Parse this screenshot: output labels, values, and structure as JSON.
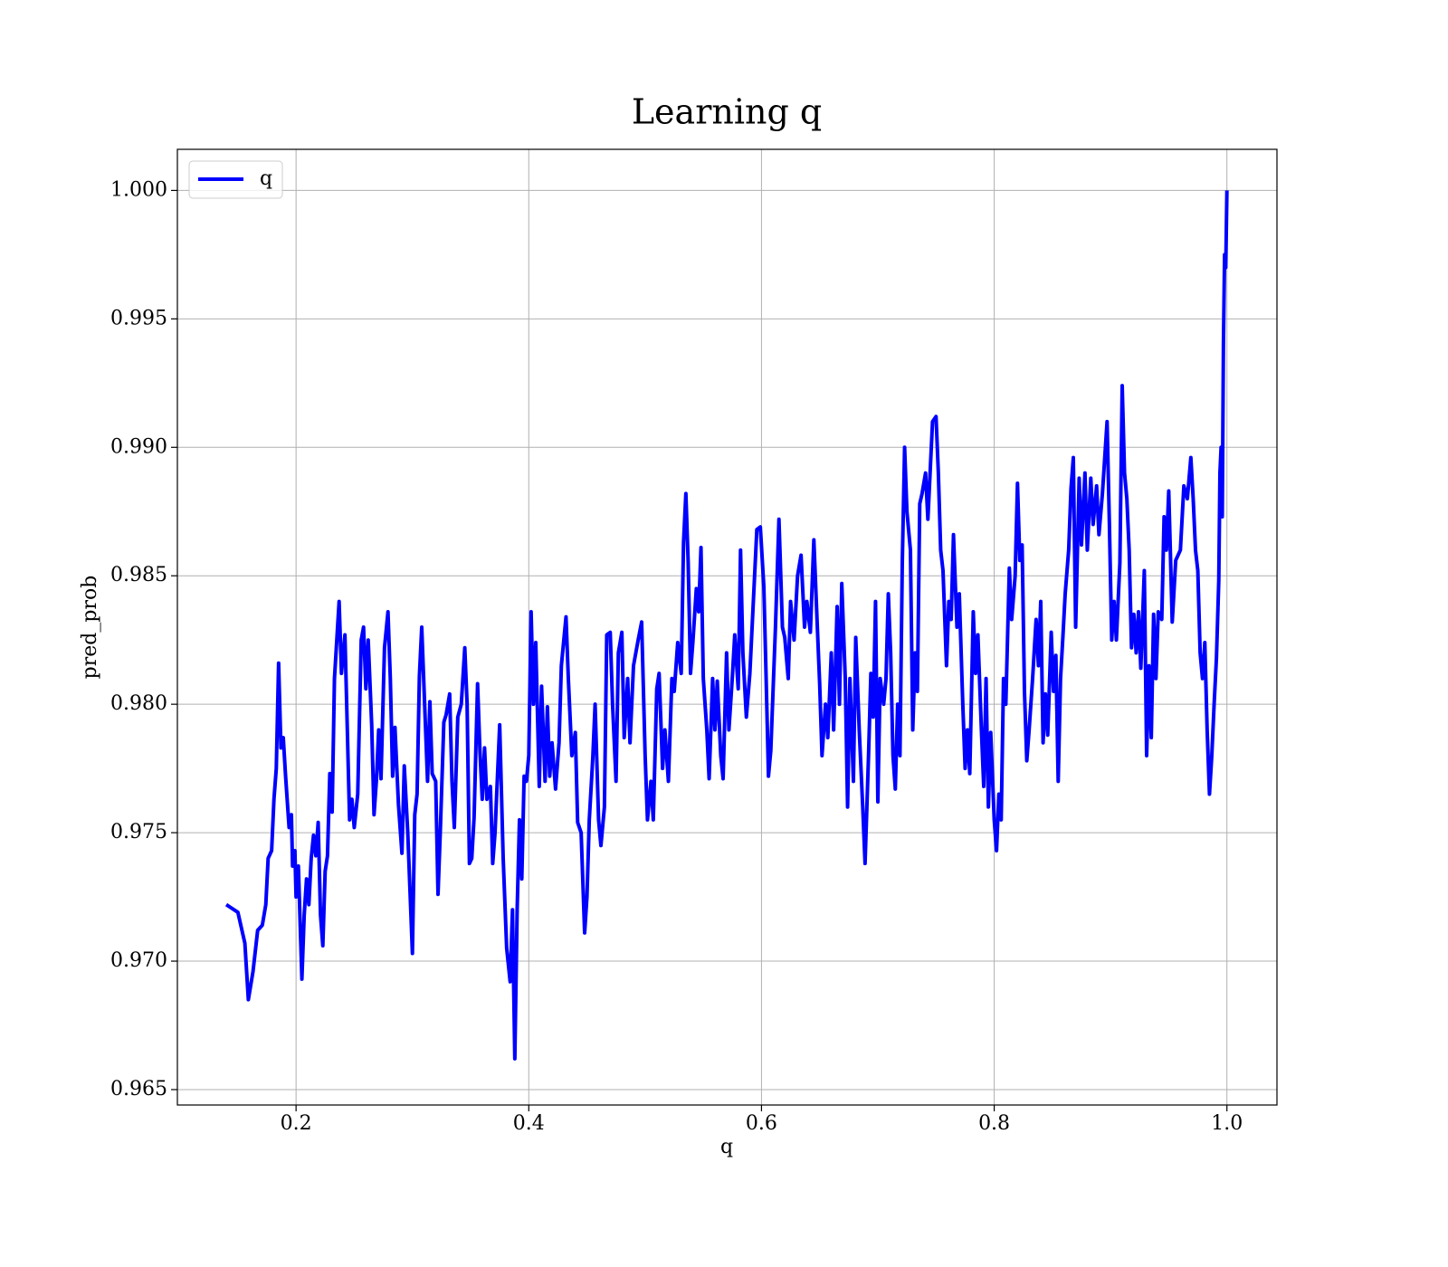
{
  "chart_data": {
    "type": "line",
    "title": "Learning q",
    "x_label": "q",
    "y_label": "pred_prob",
    "xlim": [
      0.098,
      1.043
    ],
    "ylim": [
      0.9644,
      1.0016
    ],
    "xticks": [
      0.2,
      0.4,
      0.6,
      0.8,
      {
        "value": 1,
        "label": "1.0"
      }
    ],
    "yticks": [
      {
        "value": 0.965,
        "label": "0.965"
      },
      {
        "value": 0.97,
        "label": "0.970"
      },
      {
        "value": 0.975,
        "label": "0.975"
      },
      {
        "value": 0.98,
        "label": "0.980"
      },
      {
        "value": 0.985,
        "label": "0.985"
      },
      {
        "value": 0.99,
        "label": "0.990"
      },
      {
        "value": 0.995,
        "label": "0.995"
      },
      {
        "value": 1,
        "label": "1.000"
      }
    ],
    "grid": true,
    "legend": "upper left",
    "x": [
      0.14,
      0.15,
      0.156,
      0.159,
      0.163,
      0.167,
      0.171,
      0.174,
      0.176,
      0.179,
      0.181,
      0.183,
      0.185,
      0.187,
      0.189,
      0.191,
      0.194,
      0.196,
      0.197,
      0.199,
      0.2,
      0.202,
      0.205,
      0.207,
      0.209,
      0.211,
      0.213,
      0.215,
      0.217,
      0.219,
      0.221,
      0.223,
      0.225,
      0.227,
      0.229,
      0.231,
      0.233,
      0.237,
      0.239,
      0.242,
      0.246,
      0.248,
      0.25,
      0.253,
      0.256,
      0.258,
      0.26,
      0.262,
      0.265,
      0.267,
      0.269,
      0.271,
      0.273,
      0.276,
      0.279,
      0.281,
      0.283,
      0.285,
      0.288,
      0.291,
      0.293,
      0.296,
      0.3,
      0.302,
      0.304,
      0.306,
      0.308,
      0.31,
      0.313,
      0.315,
      0.317,
      0.32,
      0.322,
      0.324,
      0.327,
      0.329,
      0.332,
      0.334,
      0.336,
      0.339,
      0.342,
      0.345,
      0.347,
      0.349,
      0.351,
      0.353,
      0.356,
      0.358,
      0.36,
      0.362,
      0.364,
      0.367,
      0.369,
      0.371,
      0.375,
      0.378,
      0.381,
      0.384,
      0.386,
      0.388,
      0.39,
      0.392,
      0.394,
      0.396,
      0.398,
      0.4,
      0.402,
      0.404,
      0.406,
      0.409,
      0.411,
      0.414,
      0.416,
      0.418,
      0.42,
      0.423,
      0.426,
      0.428,
      0.432,
      0.434,
      0.437,
      0.44,
      0.442,
      0.445,
      0.448,
      0.45,
      0.452,
      0.455,
      0.457,
      0.46,
      0.462,
      0.465,
      0.467,
      0.47,
      0.472,
      0.475,
      0.477,
      0.48,
      0.482,
      0.485,
      0.487,
      0.49,
      0.494,
      0.497,
      0.5,
      0.502,
      0.505,
      0.507,
      0.51,
      0.512,
      0.515,
      0.517,
      0.52,
      0.523,
      0.525,
      0.528,
      0.531,
      0.533,
      0.535,
      0.537,
      0.539,
      0.541,
      0.544,
      0.546,
      0.548,
      0.55,
      0.553,
      0.555,
      0.558,
      0.56,
      0.562,
      0.565,
      0.567,
      0.57,
      0.572,
      0.575,
      0.577,
      0.58,
      0.582,
      0.584,
      0.587,
      0.59,
      0.593,
      0.596,
      0.599,
      0.602,
      0.604,
      0.606,
      0.608,
      0.612,
      0.615,
      0.618,
      0.62,
      0.623,
      0.625,
      0.628,
      0.631,
      0.634,
      0.637,
      0.639,
      0.642,
      0.645,
      0.648,
      0.65,
      0.652,
      0.655,
      0.657,
      0.66,
      0.662,
      0.665,
      0.667,
      0.669,
      0.672,
      0.674,
      0.676,
      0.679,
      0.681,
      0.684,
      0.687,
      0.689,
      0.692,
      0.694,
      0.696,
      0.698,
      0.7,
      0.702,
      0.705,
      0.707,
      0.709,
      0.711,
      0.713,
      0.715,
      0.717,
      0.719,
      0.721,
      0.723,
      0.725,
      0.728,
      0.73,
      0.732,
      0.734,
      0.736,
      0.738,
      0.741,
      0.743,
      0.747,
      0.75,
      0.752,
      0.754,
      0.756,
      0.759,
      0.761,
      0.763,
      0.765,
      0.768,
      0.77,
      0.773,
      0.775,
      0.777,
      0.779,
      0.782,
      0.784,
      0.786,
      0.789,
      0.791,
      0.793,
      0.795,
      0.797,
      0.8,
      0.802,
      0.804,
      0.806,
      0.808,
      0.81,
      0.813,
      0.815,
      0.818,
      0.82,
      0.822,
      0.824,
      0.826,
      0.828,
      0.83,
      0.833,
      0.836,
      0.838,
      0.84,
      0.842,
      0.844,
      0.846,
      0.849,
      0.851,
      0.853,
      0.855,
      0.857,
      0.859,
      0.861,
      0.864,
      0.866,
      0.868,
      0.87,
      0.873,
      0.875,
      0.878,
      0.88,
      0.883,
      0.885,
      0.888,
      0.89,
      0.893,
      0.897,
      0.899,
      0.901,
      0.903,
      0.905,
      0.908,
      0.91,
      0.912,
      0.914,
      0.916,
      0.918,
      0.92,
      0.922,
      0.924,
      0.926,
      0.929,
      0.931,
      0.933,
      0.935,
      0.937,
      0.939,
      0.941,
      0.944,
      0.946,
      0.948,
      0.95,
      0.953,
      0.956,
      0.96,
      0.963,
      0.966,
      0.969,
      0.971,
      0.973,
      0.975,
      0.977,
      0.979,
      0.981,
      0.983,
      0.985,
      0.987,
      0.989,
      0.991,
      0.993,
      0.994,
      0.995,
      0.996,
      0.997,
      0.998,
      0.999,
      1.0
    ],
    "series": [
      {
        "name": "q",
        "color": "#0000ff",
        "values": [
          0.9722,
          0.9719,
          0.9707,
          0.9685,
          0.9696,
          0.9712,
          0.9714,
          0.9722,
          0.974,
          0.9743,
          0.9763,
          0.9775,
          0.9816,
          0.9783,
          0.9787,
          0.9772,
          0.9752,
          0.9757,
          0.9737,
          0.9743,
          0.9725,
          0.9737,
          0.9693,
          0.9718,
          0.9732,
          0.9722,
          0.974,
          0.9749,
          0.9741,
          0.9754,
          0.9718,
          0.9706,
          0.9735,
          0.9741,
          0.9773,
          0.9758,
          0.981,
          0.984,
          0.9812,
          0.9827,
          0.9755,
          0.9763,
          0.9752,
          0.9765,
          0.9825,
          0.983,
          0.9806,
          0.9825,
          0.9792,
          0.9757,
          0.977,
          0.979,
          0.9771,
          0.9822,
          0.9836,
          0.981,
          0.9772,
          0.9791,
          0.9761,
          0.9742,
          0.9776,
          0.975,
          0.9703,
          0.9757,
          0.9765,
          0.9811,
          0.983,
          0.9806,
          0.977,
          0.9801,
          0.9773,
          0.977,
          0.9726,
          0.9751,
          0.9793,
          0.9796,
          0.9804,
          0.977,
          0.9752,
          0.9795,
          0.98,
          0.9822,
          0.98,
          0.9738,
          0.974,
          0.9756,
          0.9808,
          0.9782,
          0.9763,
          0.9783,
          0.9763,
          0.9768,
          0.9738,
          0.975,
          0.9792,
          0.974,
          0.9705,
          0.9692,
          0.972,
          0.9662,
          0.972,
          0.9755,
          0.9732,
          0.9772,
          0.977,
          0.978,
          0.9836,
          0.98,
          0.9824,
          0.9768,
          0.9807,
          0.977,
          0.9799,
          0.9772,
          0.9785,
          0.9767,
          0.9785,
          0.9815,
          0.9834,
          0.981,
          0.978,
          0.9789,
          0.9754,
          0.975,
          0.9711,
          0.9725,
          0.9755,
          0.9779,
          0.98,
          0.9755,
          0.9745,
          0.976,
          0.9827,
          0.9828,
          0.98,
          0.977,
          0.982,
          0.9828,
          0.9787,
          0.981,
          0.9785,
          0.9815,
          0.9825,
          0.9832,
          0.978,
          0.9755,
          0.977,
          0.9755,
          0.9806,
          0.9812,
          0.9775,
          0.979,
          0.977,
          0.981,
          0.9805,
          0.9824,
          0.9812,
          0.9863,
          0.9882,
          0.9855,
          0.9812,
          0.9824,
          0.9845,
          0.9836,
          0.9861,
          0.981,
          0.979,
          0.9771,
          0.981,
          0.979,
          0.9809,
          0.978,
          0.9771,
          0.982,
          0.979,
          0.9811,
          0.9827,
          0.9806,
          0.986,
          0.982,
          0.9795,
          0.9812,
          0.984,
          0.9868,
          0.9869,
          0.9846,
          0.981,
          0.9772,
          0.9782,
          0.983,
          0.9872,
          0.983,
          0.9826,
          0.981,
          0.984,
          0.9825,
          0.985,
          0.9858,
          0.983,
          0.984,
          0.9828,
          0.9864,
          0.983,
          0.9808,
          0.978,
          0.98,
          0.9787,
          0.982,
          0.979,
          0.9838,
          0.98,
          0.9847,
          0.981,
          0.976,
          0.981,
          0.977,
          0.9826,
          0.979,
          0.976,
          0.9738,
          0.978,
          0.9812,
          0.9795,
          0.984,
          0.9762,
          0.981,
          0.98,
          0.981,
          0.9843,
          0.982,
          0.978,
          0.9767,
          0.98,
          0.978,
          0.9855,
          0.99,
          0.9875,
          0.986,
          0.979,
          0.982,
          0.9805,
          0.9878,
          0.9882,
          0.989,
          0.9872,
          0.991,
          0.9912,
          0.989,
          0.986,
          0.9852,
          0.9815,
          0.984,
          0.9833,
          0.9866,
          0.983,
          0.9843,
          0.98,
          0.9775,
          0.979,
          0.9773,
          0.9836,
          0.9812,
          0.9827,
          0.979,
          0.9768,
          0.981,
          0.976,
          0.9789,
          0.9755,
          0.9743,
          0.9765,
          0.9755,
          0.981,
          0.98,
          0.9853,
          0.9833,
          0.985,
          0.9886,
          0.9856,
          0.9862,
          0.9805,
          0.9778,
          0.979,
          0.981,
          0.9833,
          0.9815,
          0.984,
          0.9785,
          0.9804,
          0.9788,
          0.9828,
          0.9805,
          0.9819,
          0.977,
          0.981,
          0.9826,
          0.9843,
          0.986,
          0.9884,
          0.9896,
          0.983,
          0.9888,
          0.9862,
          0.989,
          0.986,
          0.9888,
          0.987,
          0.9885,
          0.9866,
          0.9882,
          0.991,
          0.987,
          0.9825,
          0.984,
          0.9825,
          0.9855,
          0.9924,
          0.989,
          0.988,
          0.986,
          0.9822,
          0.9835,
          0.982,
          0.9836,
          0.9814,
          0.9852,
          0.978,
          0.9815,
          0.9787,
          0.9835,
          0.981,
          0.9836,
          0.9833,
          0.9873,
          0.986,
          0.9883,
          0.9832,
          0.9856,
          0.986,
          0.9885,
          0.988,
          0.9896,
          0.988,
          0.986,
          0.9852,
          0.982,
          0.981,
          0.9824,
          0.979,
          0.9765,
          0.978,
          0.98,
          0.9818,
          0.9848,
          0.989,
          0.99,
          0.9873,
          0.994,
          0.9975,
          0.997,
          1.0
        ]
      }
    ]
  }
}
